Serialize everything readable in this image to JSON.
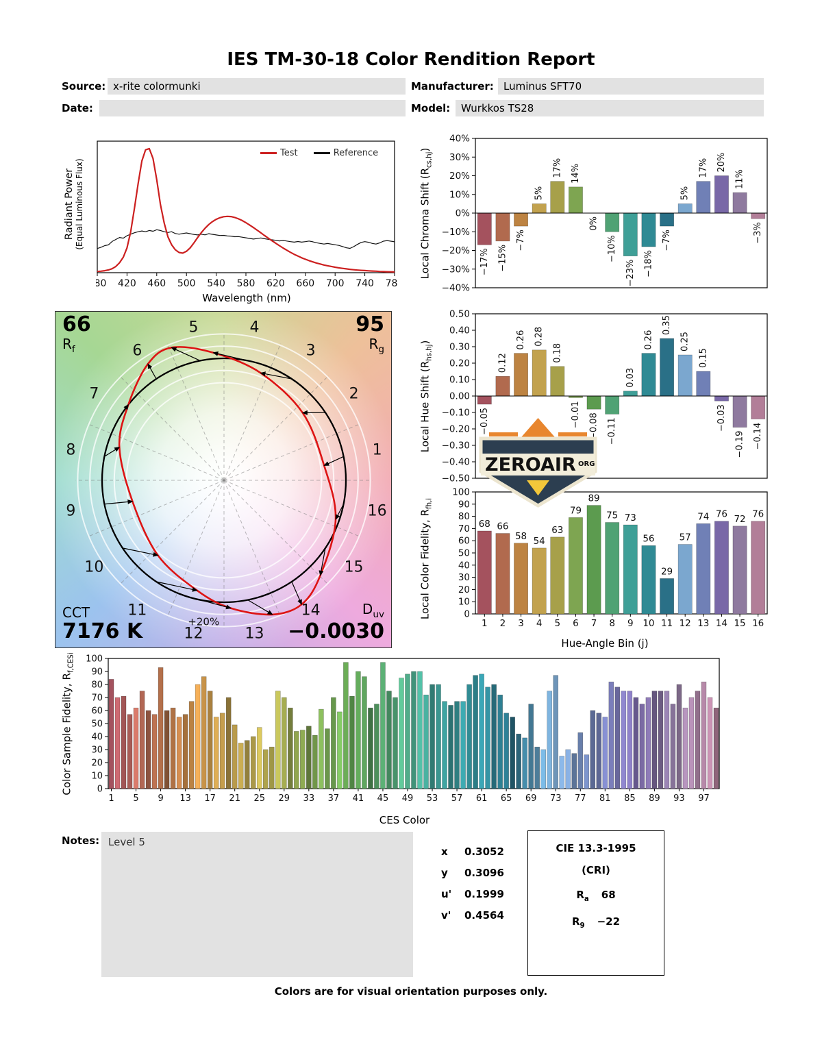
{
  "title": "IES TM-30-18 Color Rendition Report",
  "header": {
    "source_label": "Source:",
    "source_value": "x-rite colormunki",
    "manufacturer_label": "Manufacturer:",
    "manufacturer_value": "Luminus SFT70",
    "date_label": "Date:",
    "date_value": "",
    "model_label": "Model:",
    "model_value": "Wurkkos TS28"
  },
  "notes": {
    "label": "Notes:",
    "value": "Level 5"
  },
  "chromaticity": {
    "rows": [
      {
        "label": "x",
        "value": "0.3052"
      },
      {
        "label": "y",
        "value": "0.3096"
      },
      {
        "label": "u'",
        "value": "0.1999"
      },
      {
        "label": "v'",
        "value": "0.4564"
      }
    ]
  },
  "cri_box": {
    "title": "CIE 13.3-1995",
    "subtitle": "(CRI)",
    "ra_letter": "R",
    "ra_sub": "a",
    "ra_value": "68",
    "r9_letter": "R",
    "r9_sub": "9",
    "r9_value": "−22"
  },
  "logo": {
    "text": "ZEROAIR",
    "suffix": "ORG"
  },
  "footer": "Colors are for visual orientation purposes only.",
  "palette16": [
    "#a4525e",
    "#b16a4e",
    "#bd8342",
    "#c2a24e",
    "#a7a04a",
    "#7ea551",
    "#5c9b4f",
    "#50a274",
    "#3f9f97",
    "#2f8a94",
    "#2a7087",
    "#7ba7cf",
    "#7080b6",
    "#7968a7",
    "#8f7a9f",
    "#b27e98"
  ],
  "chart_data": [
    {
      "id": "spd",
      "type": "line",
      "xlabel": "Wavelength (nm)",
      "ylabel_line1": "Radiant Power",
      "ylabel_line2": "(Equal Luminous Flux)",
      "xlim": [
        380,
        780
      ],
      "ylim": [
        0,
        1.06
      ],
      "x_start": 380,
      "x_step": 5,
      "xtick_values": [
        380,
        420,
        460,
        500,
        540,
        580,
        620,
        660,
        700,
        740,
        780
      ],
      "xtick_labels": [
        "380",
        "420",
        "460",
        "500",
        "540",
        "580",
        "620",
        "660",
        "700",
        "740",
        "780"
      ],
      "series": [
        {
          "name": "Test",
          "color": "#cc2020",
          "width": 2.2,
          "y": [
            0.01,
            0.012,
            0.016,
            0.022,
            0.032,
            0.05,
            0.08,
            0.125,
            0.2,
            0.33,
            0.52,
            0.72,
            0.9,
            0.99,
            1.0,
            0.92,
            0.75,
            0.55,
            0.4,
            0.29,
            0.225,
            0.185,
            0.163,
            0.158,
            0.172,
            0.2,
            0.24,
            0.283,
            0.323,
            0.358,
            0.388,
            0.412,
            0.43,
            0.443,
            0.451,
            0.454,
            0.452,
            0.445,
            0.434,
            0.42,
            0.403,
            0.384,
            0.364,
            0.343,
            0.322,
            0.3,
            0.279,
            0.258,
            0.238,
            0.218,
            0.199,
            0.181,
            0.164,
            0.148,
            0.134,
            0.12,
            0.108,
            0.097,
            0.087,
            0.078,
            0.07,
            0.062,
            0.056,
            0.05,
            0.044,
            0.039,
            0.035,
            0.031,
            0.027,
            0.024,
            0.021,
            0.019,
            0.017,
            0.015,
            0.013,
            0.012,
            0.01,
            0.009,
            0.008,
            0.007,
            0.006
          ]
        },
        {
          "name": "Reference",
          "color": "#111111",
          "width": 1.2,
          "y": [
            0.195,
            0.205,
            0.218,
            0.224,
            0.252,
            0.268,
            0.284,
            0.278,
            0.298,
            0.31,
            0.322,
            0.33,
            0.336,
            0.33,
            0.34,
            0.334,
            0.346,
            0.34,
            0.33,
            0.324,
            0.33,
            0.316,
            0.31,
            0.316,
            0.32,
            0.314,
            0.308,
            0.304,
            0.31,
            0.305,
            0.314,
            0.309,
            0.304,
            0.3,
            0.301,
            0.296,
            0.295,
            0.29,
            0.291,
            0.286,
            0.281,
            0.276,
            0.271,
            0.275,
            0.28,
            0.274,
            0.269,
            0.265,
            0.261,
            0.256,
            0.26,
            0.255,
            0.25,
            0.246,
            0.251,
            0.246,
            0.25,
            0.255,
            0.249,
            0.241,
            0.236,
            0.231,
            0.235,
            0.23,
            0.225,
            0.22,
            0.211,
            0.201,
            0.196,
            0.21,
            0.228,
            0.244,
            0.25,
            0.245,
            0.236,
            0.231,
            0.24,
            0.254,
            0.259,
            0.254,
            0.249
          ]
        }
      ]
    },
    {
      "id": "local_chroma_shift",
      "type": "bar",
      "ylabel_pre": "Local Chroma Shift (R",
      "ylabel_sub": "cs,hj",
      "ylabel_post": ")",
      "ylim": [
        -40,
        40
      ],
      "ytick_values": [
        40,
        30,
        20,
        10,
        0,
        -10,
        -20,
        -30,
        -40
      ],
      "ytick_labels": [
        "40%",
        "30%",
        "20%",
        "10%",
        "0%",
        "−10%",
        "−20%",
        "−30%",
        "−40%"
      ],
      "categories": [
        1,
        2,
        3,
        4,
        5,
        6,
        7,
        8,
        9,
        10,
        11,
        12,
        13,
        14,
        15,
        16
      ],
      "values": [
        -17,
        -15,
        -7,
        5,
        17,
        14,
        0,
        -10,
        -23,
        -18,
        -7,
        5,
        17,
        20,
        11,
        -3
      ],
      "bar_labels": [
        "−17%",
        "−15%",
        "−7%",
        "5%",
        "17%",
        "14%",
        "0%",
        "−10%",
        "−23%",
        "−18%",
        "−7%",
        "5%",
        "17%",
        "20%",
        "11%",
        "−3%"
      ]
    },
    {
      "id": "local_hue_shift",
      "type": "bar",
      "ylabel_pre": "Local Hue Shift (R",
      "ylabel_sub": "hs,hj",
      "ylabel_post": ")",
      "ylim": [
        -0.5,
        0.5
      ],
      "ytick_values": [
        0.5,
        0.4,
        0.3,
        0.2,
        0.1,
        0,
        -0.1,
        -0.2,
        -0.3,
        -0.4,
        -0.5
      ],
      "ytick_labels": [
        "0.50",
        "0.40",
        "0.30",
        "0.20",
        "0.10",
        "0.00",
        "−0.10",
        "−0.20",
        "−0.30",
        "−0.40",
        "−0.50"
      ],
      "categories": [
        1,
        2,
        3,
        4,
        5,
        6,
        7,
        8,
        9,
        10,
        11,
        12,
        13,
        14,
        15,
        16
      ],
      "values": [
        -0.05,
        0.12,
        0.26,
        0.28,
        0.18,
        -0.01,
        -0.08,
        -0.11,
        0.03,
        0.26,
        0.35,
        0.25,
        0.15,
        -0.03,
        -0.19,
        -0.14
      ],
      "bar_labels": [
        "−0.05",
        "0.12",
        "0.26",
        "0.28",
        "0.18",
        "−0.01",
        "−0.08",
        "−0.11",
        "0.03",
        "0.26",
        "0.35",
        "0.25",
        "0.15",
        "−0.03",
        "−0.19",
        "−0.14"
      ]
    },
    {
      "id": "local_color_fidelity",
      "type": "bar",
      "ylabel_pre": "Local Color Fidelity, R",
      "ylabel_sub": "fh,i",
      "ylabel_post": "",
      "xlabel": "Hue-Angle Bin (j)",
      "ylim": [
        0,
        100
      ],
      "ytick_values": [
        0,
        10,
        20,
        30,
        40,
        50,
        60,
        70,
        80,
        90,
        100
      ],
      "ytick_labels": [
        "0",
        "10",
        "20",
        "30",
        "40",
        "50",
        "60",
        "70",
        "80",
        "90",
        "100"
      ],
      "categories": [
        1,
        2,
        3,
        4,
        5,
        6,
        7,
        8,
        9,
        10,
        11,
        12,
        13,
        14,
        15,
        16
      ],
      "xtick_positions": [
        1,
        2,
        3,
        4,
        5,
        6,
        7,
        8,
        9,
        10,
        11,
        12,
        13,
        14,
        15,
        16
      ],
      "xtick_labels": [
        "1",
        "2",
        "3",
        "4",
        "5",
        "6",
        "7",
        "8",
        "9",
        "10",
        "11",
        "12",
        "13",
        "14",
        "15",
        "16"
      ],
      "values": [
        68,
        66,
        58,
        54,
        63,
        79,
        89,
        75,
        73,
        56,
        29,
        57,
        74,
        76,
        72,
        76
      ],
      "bar_labels": [
        "68",
        "66",
        "58",
        "54",
        "63",
        "79",
        "89",
        "75",
        "73",
        "56",
        "29",
        "57",
        "74",
        "76",
        "72",
        "76"
      ]
    },
    {
      "id": "ces_fidelity",
      "type": "bar",
      "ylabel_pre": "Color Sample Fidelity, R",
      "ylabel_sub": "f,CESi",
      "ylabel_post": "",
      "xlabel": "CES Color",
      "ylim": [
        0,
        100
      ],
      "ytick_values": [
        0,
        10,
        20,
        30,
        40,
        50,
        60,
        70,
        80,
        90,
        100
      ],
      "ytick_labels": [
        "0",
        "10",
        "20",
        "30",
        "40",
        "50",
        "60",
        "70",
        "80",
        "90",
        "100"
      ],
      "xtick_positions": [
        1,
        5,
        9,
        13,
        17,
        21,
        25,
        29,
        33,
        37,
        41,
        45,
        49,
        53,
        57,
        61,
        65,
        69,
        73,
        77,
        81,
        85,
        89,
        93,
        97
      ],
      "xtick_labels": [
        "1",
        "5",
        "9",
        "13",
        "17",
        "21",
        "25",
        "29",
        "33",
        "37",
        "41",
        "45",
        "49",
        "53",
        "57",
        "61",
        "65",
        "69",
        "73",
        "77",
        "81",
        "85",
        "89",
        "93",
        "97"
      ],
      "values": [
        84,
        70,
        71,
        57,
        62,
        75,
        60,
        57,
        93,
        60,
        62,
        55,
        57,
        67,
        80,
        86,
        75,
        55,
        58,
        70,
        49,
        35,
        37,
        40,
        47,
        30,
        32,
        75,
        70,
        62,
        44,
        45,
        48,
        41,
        61,
        46,
        70,
        59,
        97,
        71,
        90,
        86,
        62,
        65,
        97,
        75,
        70,
        85,
        88,
        90,
        90,
        72,
        80,
        80,
        67,
        64,
        67,
        67,
        80,
        87,
        88,
        78,
        80,
        72,
        58,
        55,
        42,
        39,
        65,
        32,
        30,
        75,
        87,
        25,
        30,
        27,
        43,
        26,
        60,
        58,
        55,
        82,
        78,
        75,
        75,
        70,
        65,
        70,
        75,
        75,
        75,
        65,
        80,
        62,
        70,
        75,
        82,
        70,
        62
      ]
    },
    {
      "id": "color_vector_graphic",
      "type": "vector",
      "rf": "66",
      "rf_letter": "R",
      "rf_sub": "f",
      "rg": "95",
      "rg_letter": "R",
      "rg_sub": "g",
      "cct_label": "CCT",
      "cct_value": "7176 K",
      "duv_letter": "D",
      "duv_sub": "uv",
      "duv_value": "−0.0030",
      "ring_label": "+20%",
      "bins": [
        "1",
        "2",
        "3",
        "4",
        "5",
        "6",
        "7",
        "8",
        "9",
        "10",
        "11",
        "12",
        "13",
        "14",
        "15",
        "16"
      ],
      "rcs_percent": [
        -17,
        -15,
        -7,
        5,
        17,
        14,
        0,
        -10,
        -23,
        -18,
        -7,
        5,
        17,
        20,
        11,
        -3
      ],
      "rhs_rad": [
        -0.05,
        0.12,
        0.26,
        0.28,
        0.18,
        -0.01,
        -0.08,
        -0.11,
        0.03,
        0.26,
        0.35,
        0.25,
        0.15,
        -0.03,
        -0.19,
        -0.14
      ]
    }
  ]
}
